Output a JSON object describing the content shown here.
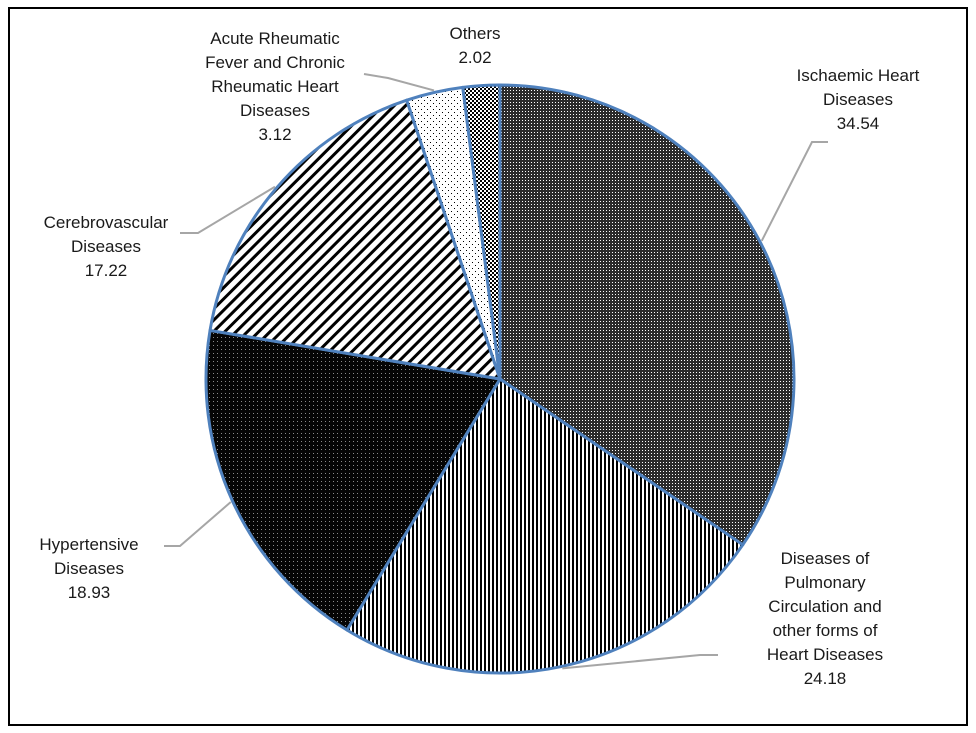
{
  "chart_data": {
    "type": "pie",
    "title": "",
    "slices": [
      {
        "label_lines": [
          "Ischaemic Heart",
          "Diseases"
        ],
        "value": 34.54,
        "value_text": "34.54",
        "pattern": "dense-dots-dark"
      },
      {
        "label_lines": [
          "Diseases of",
          "Pulmonary",
          "Circulation and",
          "other forms of",
          "Heart Diseases"
        ],
        "value": 24.18,
        "value_text": "24.18",
        "pattern": "vertical-stripes"
      },
      {
        "label_lines": [
          "Hypertensive",
          "Diseases"
        ],
        "value": 18.93,
        "value_text": "18.93",
        "pattern": "black-dotted"
      },
      {
        "label_lines": [
          "Cerebrovascular",
          "Diseases"
        ],
        "value": 17.22,
        "value_text": "17.22",
        "pattern": "diagonal-stripes"
      },
      {
        "label_lines": [
          "Acute Rheumatic",
          "Fever and Chronic",
          "Rheumatic Heart",
          "Diseases"
        ],
        "value": 3.12,
        "value_text": "3.12",
        "pattern": "sparse-dots"
      },
      {
        "label_lines": [
          "Others"
        ],
        "value": 2.02,
        "value_text": "2.02",
        "pattern": "checker-dots"
      }
    ],
    "start_angle": "12 o'clock",
    "direction": "clockwise",
    "legend": "none",
    "data_labels": "category name and value"
  },
  "colors": {
    "slice_border": "#4f81bd",
    "leader_line": "#a6a6a6",
    "frame_border": "#000000",
    "label_text": "#1a1a1a"
  }
}
